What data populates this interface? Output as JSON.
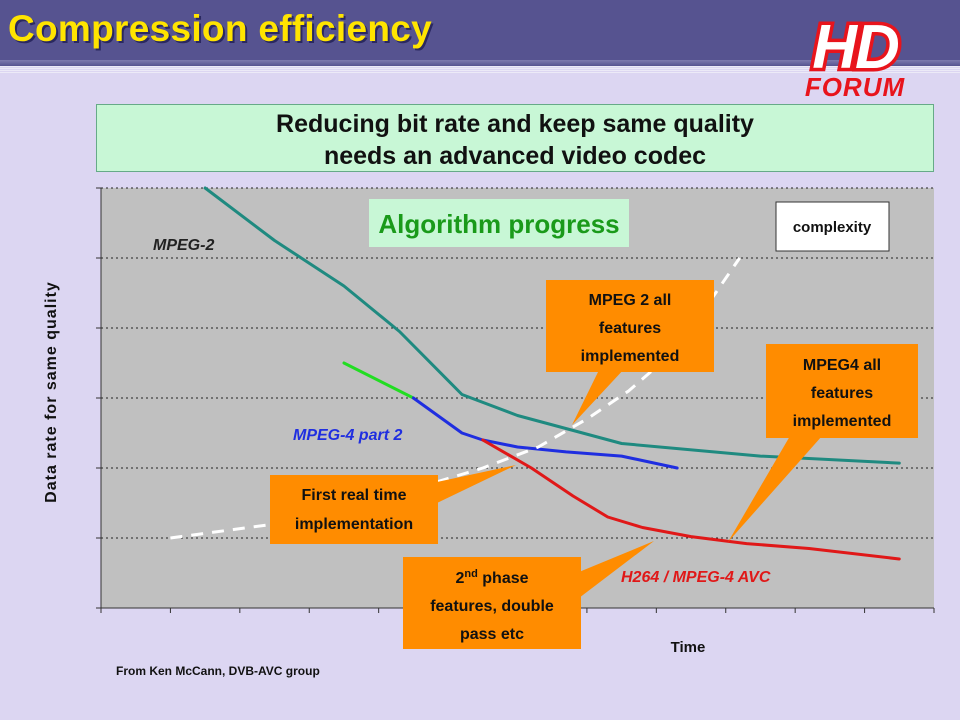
{
  "slide": {
    "title": "Compression efficiency",
    "headline": [
      "Reducing bit rate and keep same quality",
      "needs an advanced video codec"
    ],
    "source": "From Ken McCann, DVB-AVC group",
    "logo": {
      "top": "HD",
      "bottom": "FORUM"
    }
  },
  "colors": {
    "title_bar": "#565390",
    "title_text": "#ffe400",
    "background": "#dcd6f2",
    "plot_area": "#c0c0c0",
    "headline_box": "#c8f7d6",
    "callout_orange": "#ff8c00",
    "logo_red": "#e8141c"
  },
  "chart_data": {
    "type": "line",
    "xlabel": "Time",
    "ylabel": "Data rate for same quality",
    "xlim": [
      0,
      12
    ],
    "ylim": [
      0,
      6
    ],
    "grid": {
      "horizontal": true,
      "vertical": false
    },
    "series": [
      {
        "name": "MPEG-2",
        "color": "#1f8a80",
        "x": [
          1.5,
          2.5,
          3.5,
          4.3,
          5.2,
          6,
          7.5,
          9.5,
          11.5
        ],
        "y": [
          6,
          5.25,
          4.6,
          3.95,
          3.05,
          2.75,
          2.35,
          2.17,
          2.07
        ]
      },
      {
        "name": "",
        "color": "#22dd22",
        "x": [
          3.5,
          4.5
        ],
        "y": [
          3.5,
          3.0
        ]
      },
      {
        "name": "MPEG-4 part 2",
        "color": "#1f2ee0",
        "x": [
          4.5,
          5.2,
          5.5,
          6,
          6.7,
          7.5,
          8.3
        ],
        "y": [
          3.0,
          2.5,
          2.4,
          2.3,
          2.23,
          2.17,
          2.0
        ]
      },
      {
        "name": "H264 / MPEG-4 AVC",
        "color": "#e01818",
        "x": [
          5.5,
          6.2,
          6.8,
          7.3,
          7.8,
          8.5,
          9.3,
          10.2,
          11.5
        ],
        "y": [
          2.4,
          2.0,
          1.6,
          1.3,
          1.15,
          1.02,
          0.92,
          0.85,
          0.7
        ]
      },
      {
        "name": "complexity",
        "color": "#ffffff",
        "dashed": true,
        "x": [
          1,
          2.5,
          4.5,
          5.5,
          6.3,
          7,
          7.6,
          8.3,
          9.2
        ],
        "y": [
          1.0,
          1.2,
          1.7,
          2.0,
          2.3,
          2.7,
          3.1,
          3.7,
          5.0
        ]
      }
    ],
    "annotations": {
      "algorithm_progress": "Algorithm progress",
      "complexity": "complexity",
      "mpeg2_label": "MPEG-2",
      "mpeg4_label": "MPEG-4 part 2",
      "h264_label": "H264 / MPEG-4 AVC",
      "callouts": [
        {
          "lines": [
            "MPEG 2 all",
            "features",
            "implemented"
          ]
        },
        {
          "lines": [
            "MPEG4 all",
            "features",
            "implemented"
          ]
        },
        {
          "lines": [
            "First real time",
            "implementation"
          ]
        },
        {
          "lines": [
            "2nd phase",
            "features, double",
            "pass etc"
          ]
        }
      ]
    }
  }
}
